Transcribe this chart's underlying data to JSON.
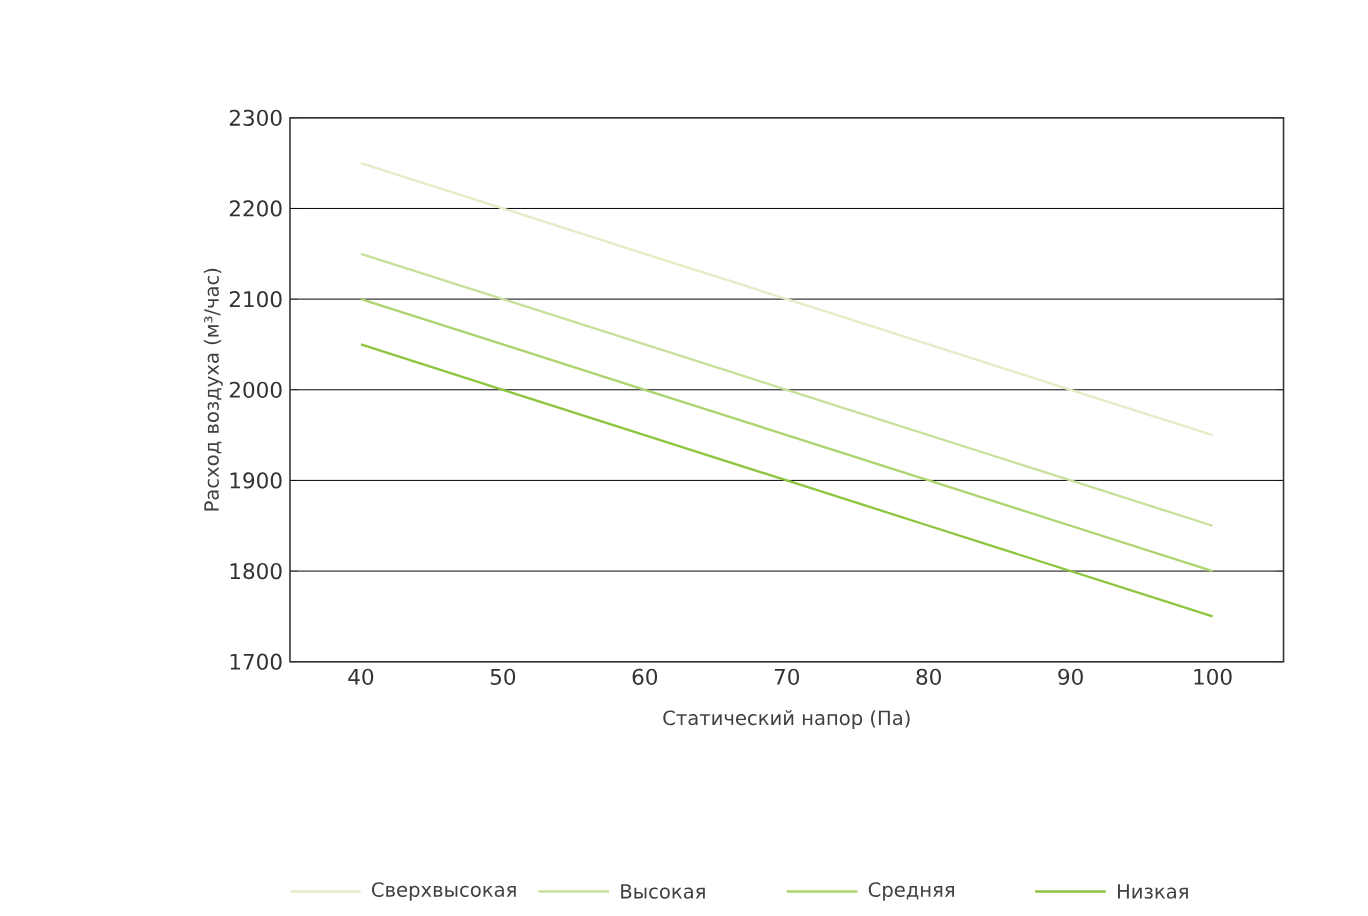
{
  "chart_data": {
    "type": "line",
    "xlabel": "Статический напор (Па)",
    "ylabel": "Расход воздуха (м³/час)",
    "categories": [
      "40",
      "50",
      "60",
      "70",
      "80",
      "90",
      "100"
    ],
    "series": [
      {
        "name": "Сверхвысокая",
        "color": "#e3edc6",
        "values": [
          2250,
          2200,
          2150,
          2100,
          2050,
          2000,
          1950
        ]
      },
      {
        "name": "Высокая",
        "color": "#c9e09c",
        "values": [
          2150,
          2100,
          2050,
          2000,
          1950,
          1900,
          1850
        ]
      },
      {
        "name": "Средняя",
        "color": "#acd46f",
        "values": [
          2100,
          2050,
          2000,
          1950,
          1900,
          1850,
          1800
        ]
      },
      {
        "name": "Низкая",
        "color": "#8dc53e",
        "values": [
          2050,
          2000,
          1950,
          1900,
          1850,
          1800,
          1750
        ]
      }
    ],
    "ylim": [
      1700,
      2300
    ],
    "yticks": [
      1700,
      1800,
      1900,
      2000,
      2100,
      2200,
      2300
    ],
    "grid": "y",
    "legend": "bottom",
    "marker": "none",
    "line_style": "solid"
  }
}
